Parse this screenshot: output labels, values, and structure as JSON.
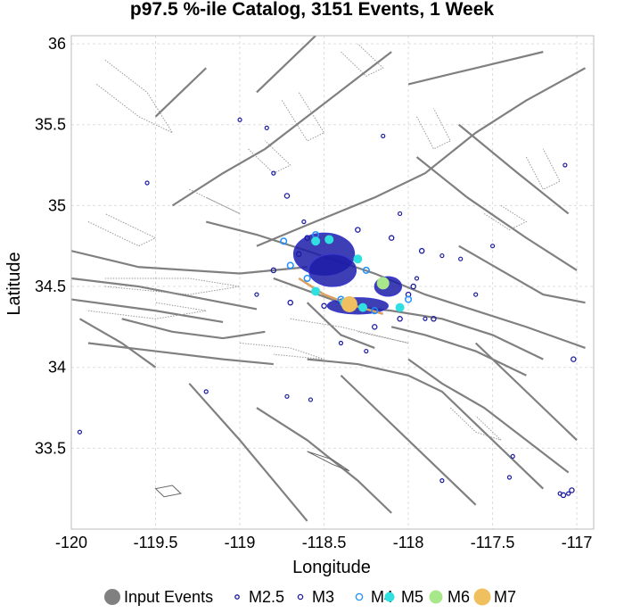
{
  "chart_data": {
    "type": "scatter",
    "title": "p97.5 %-ile Catalog, 3151 Events, 1 Week",
    "xlabel": "Longitude",
    "ylabel": "Latitude",
    "xlim": [
      -120.0,
      -116.9
    ],
    "ylim": [
      33.0,
      36.05
    ],
    "x_ticks": [
      -120,
      -119.5,
      -119,
      -118.5,
      -118,
      -117.5,
      -117
    ],
    "x_tick_labels": [
      "-120",
      "-119.5",
      "-119",
      "-118.5",
      "-118",
      "-117.5",
      "-117"
    ],
    "y_ticks": [
      33.5,
      34,
      34.5,
      35,
      35.5,
      36
    ],
    "y_tick_labels": [
      "33.5",
      "34",
      "34.5",
      "35",
      "35.5",
      "36"
    ],
    "grid": true,
    "legend_position": "bottom",
    "colors": {
      "input": "#808080",
      "M2.5": "#1a1aa0",
      "M3": "#1a1aa0",
      "M4": "#1e90ff",
      "M5": "#30e0e0",
      "M6": "#a8e88a",
      "M7": "#f0c060",
      "fault": "#808080",
      "cluster": "#1c1ca8"
    },
    "legend": [
      {
        "label": "Input Events",
        "key": "input"
      },
      {
        "label": "M2.5",
        "key": "M2.5"
      },
      {
        "label": "M3",
        "key": "M3"
      },
      {
        "label": "M4",
        "key": "M4"
      },
      {
        "label": "M5",
        "key": "M5"
      },
      {
        "label": "M6",
        "key": "M6"
      },
      {
        "label": "M7",
        "key": "M7"
      }
    ],
    "input_events": [
      {
        "x": -118.35,
        "y": 34.39
      }
    ],
    "cluster": [
      {
        "x": -118.5,
        "y": 34.7,
        "rx": 0.18,
        "ry": 0.13
      },
      {
        "x": -118.45,
        "y": 34.6,
        "rx": 0.14,
        "ry": 0.1
      },
      {
        "x": -118.3,
        "y": 34.38,
        "rx": 0.18,
        "ry": 0.05
      },
      {
        "x": -118.12,
        "y": 34.5,
        "rx": 0.08,
        "ry": 0.06
      }
    ],
    "series": [
      {
        "name": "M2.5",
        "points": [
          {
            "x": -119.55,
            "y": 35.14
          },
          {
            "x": -119.0,
            "y": 35.53
          },
          {
            "x": -118.84,
            "y": 35.48
          },
          {
            "x": -118.15,
            "y": 35.43
          },
          {
            "x": -118.8,
            "y": 35.2
          },
          {
            "x": -119.95,
            "y": 33.6
          },
          {
            "x": -117.07,
            "y": 35.25
          },
          {
            "x": -117.1,
            "y": 33.22
          },
          {
            "x": -117.05,
            "y": 33.22
          },
          {
            "x": -117.38,
            "y": 33.45
          },
          {
            "x": -117.4,
            "y": 33.32
          },
          {
            "x": -117.8,
            "y": 33.3
          },
          {
            "x": -117.5,
            "y": 34.75
          },
          {
            "x": -117.8,
            "y": 34.69
          },
          {
            "x": -117.69,
            "y": 34.67
          },
          {
            "x": -118.72,
            "y": 33.82
          },
          {
            "x": -118.58,
            "y": 33.8
          },
          {
            "x": -118.62,
            "y": 34.9
          },
          {
            "x": -119.2,
            "y": 33.85
          },
          {
            "x": -118.05,
            "y": 34.95
          },
          {
            "x": -117.9,
            "y": 34.3
          },
          {
            "x": -118.25,
            "y": 34.1
          },
          {
            "x": -118.9,
            "y": 34.45
          },
          {
            "x": -117.6,
            "y": 34.45
          },
          {
            "x": -118.4,
            "y": 34.15
          },
          {
            "x": -117.95,
            "y": 34.55
          }
        ]
      },
      {
        "name": "M3",
        "points": [
          {
            "x": -118.72,
            "y": 35.06
          },
          {
            "x": -118.6,
            "y": 34.8
          },
          {
            "x": -118.65,
            "y": 34.7
          },
          {
            "x": -118.3,
            "y": 34.85
          },
          {
            "x": -117.92,
            "y": 34.72
          },
          {
            "x": -117.97,
            "y": 34.5
          },
          {
            "x": -117.85,
            "y": 34.3
          },
          {
            "x": -118.5,
            "y": 34.38
          },
          {
            "x": -117.03,
            "y": 33.24
          },
          {
            "x": -117.08,
            "y": 33.21
          },
          {
            "x": -117.02,
            "y": 34.05
          },
          {
            "x": -118.7,
            "y": 34.4
          },
          {
            "x": -118.2,
            "y": 34.25
          },
          {
            "x": -118.05,
            "y": 34.3
          },
          {
            "x": -118.8,
            "y": 34.6
          },
          {
            "x": -118.1,
            "y": 34.8
          },
          {
            "x": -118.0,
            "y": 34.45
          }
        ]
      },
      {
        "name": "M4",
        "points": [
          {
            "x": -118.74,
            "y": 34.78
          },
          {
            "x": -118.55,
            "y": 34.82
          },
          {
            "x": -118.7,
            "y": 34.63
          },
          {
            "x": -118.25,
            "y": 34.6
          },
          {
            "x": -118.4,
            "y": 34.42
          },
          {
            "x": -118.0,
            "y": 34.42
          },
          {
            "x": -118.6,
            "y": 34.55
          },
          {
            "x": -118.2,
            "y": 34.35
          }
        ]
      },
      {
        "name": "M5",
        "points": [
          {
            "x": -118.55,
            "y": 34.78
          },
          {
            "x": -118.47,
            "y": 34.79
          },
          {
            "x": -118.3,
            "y": 34.67
          },
          {
            "x": -118.55,
            "y": 34.47
          },
          {
            "x": -118.38,
            "y": 34.4
          },
          {
            "x": -118.27,
            "y": 34.37
          },
          {
            "x": -118.05,
            "y": 34.37
          }
        ]
      },
      {
        "name": "M6",
        "points": [
          {
            "x": -118.15,
            "y": 34.52
          }
        ]
      },
      {
        "name": "M7",
        "points": [
          {
            "x": -118.35,
            "y": 34.39
          }
        ]
      }
    ]
  }
}
